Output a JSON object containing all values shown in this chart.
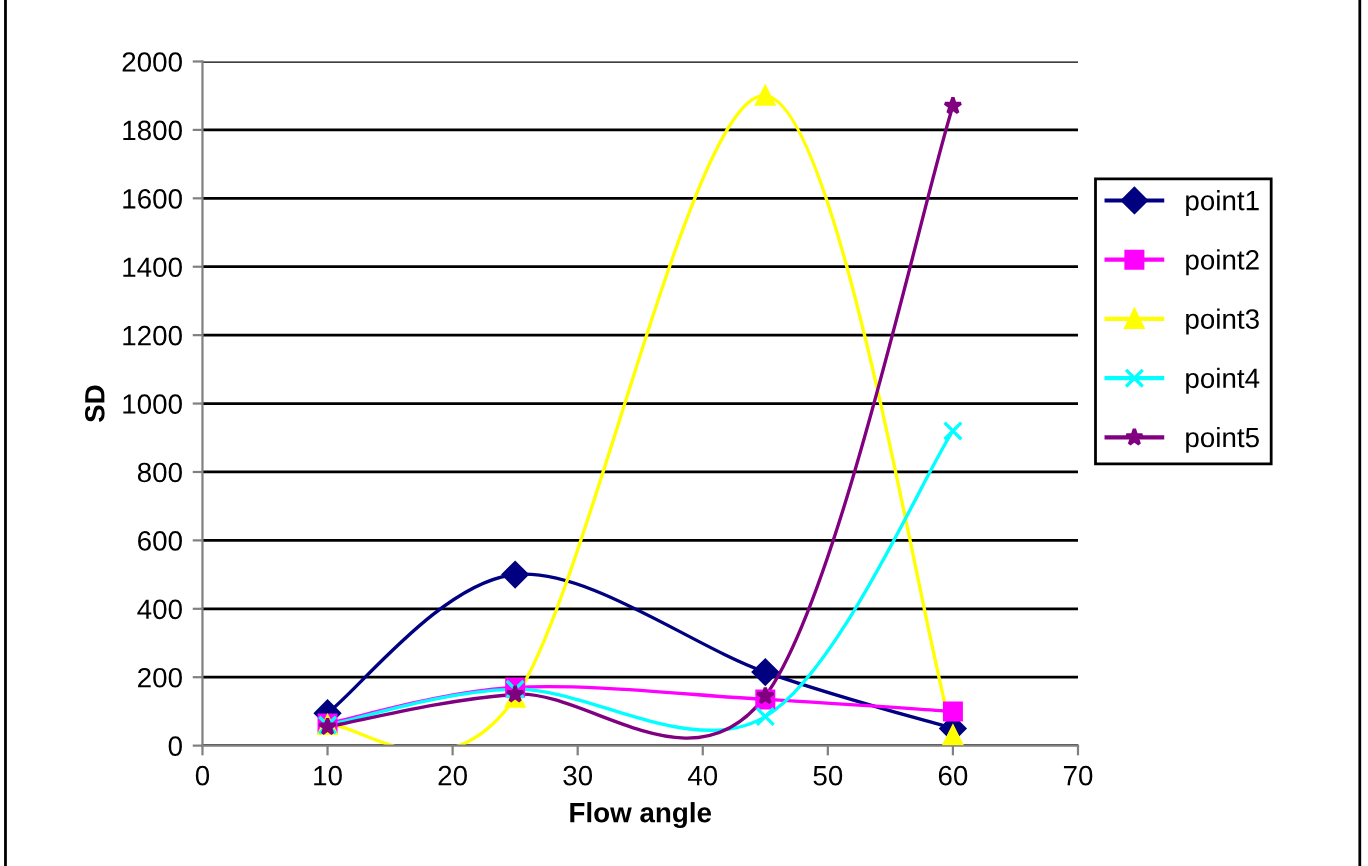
{
  "chart_data": {
    "type": "line",
    "xlabel": "Flow angle",
    "ylabel": "SD",
    "x": [
      10,
      25,
      45,
      60
    ],
    "series": [
      {
        "name": "point1",
        "color": "#000080",
        "marker": "diamond",
        "values": [
          95,
          500,
          215,
          50
        ]
      },
      {
        "name": "point2",
        "color": "#ff00ff",
        "marker": "square",
        "values": [
          65,
          170,
          135,
          100
        ]
      },
      {
        "name": "point3",
        "color": "#ffff00",
        "marker": "triangle",
        "values": [
          60,
          140,
          1900,
          30
        ]
      },
      {
        "name": "point4",
        "color": "#00ffff",
        "marker": "cross",
        "values": [
          60,
          165,
          85,
          920
        ]
      },
      {
        "name": "point5",
        "color": "#800080",
        "marker": "star",
        "values": [
          55,
          150,
          145,
          1870
        ]
      }
    ],
    "xlim": [
      0,
      70
    ],
    "xticks": [
      0,
      10,
      20,
      30,
      40,
      50,
      60,
      70
    ],
    "ylim": [
      0,
      2000
    ],
    "yticks": [
      0,
      200,
      400,
      600,
      800,
      1000,
      1200,
      1400,
      1600,
      1800,
      2000
    ],
    "grid": "y",
    "legend": "right",
    "line_style": "solid"
  }
}
